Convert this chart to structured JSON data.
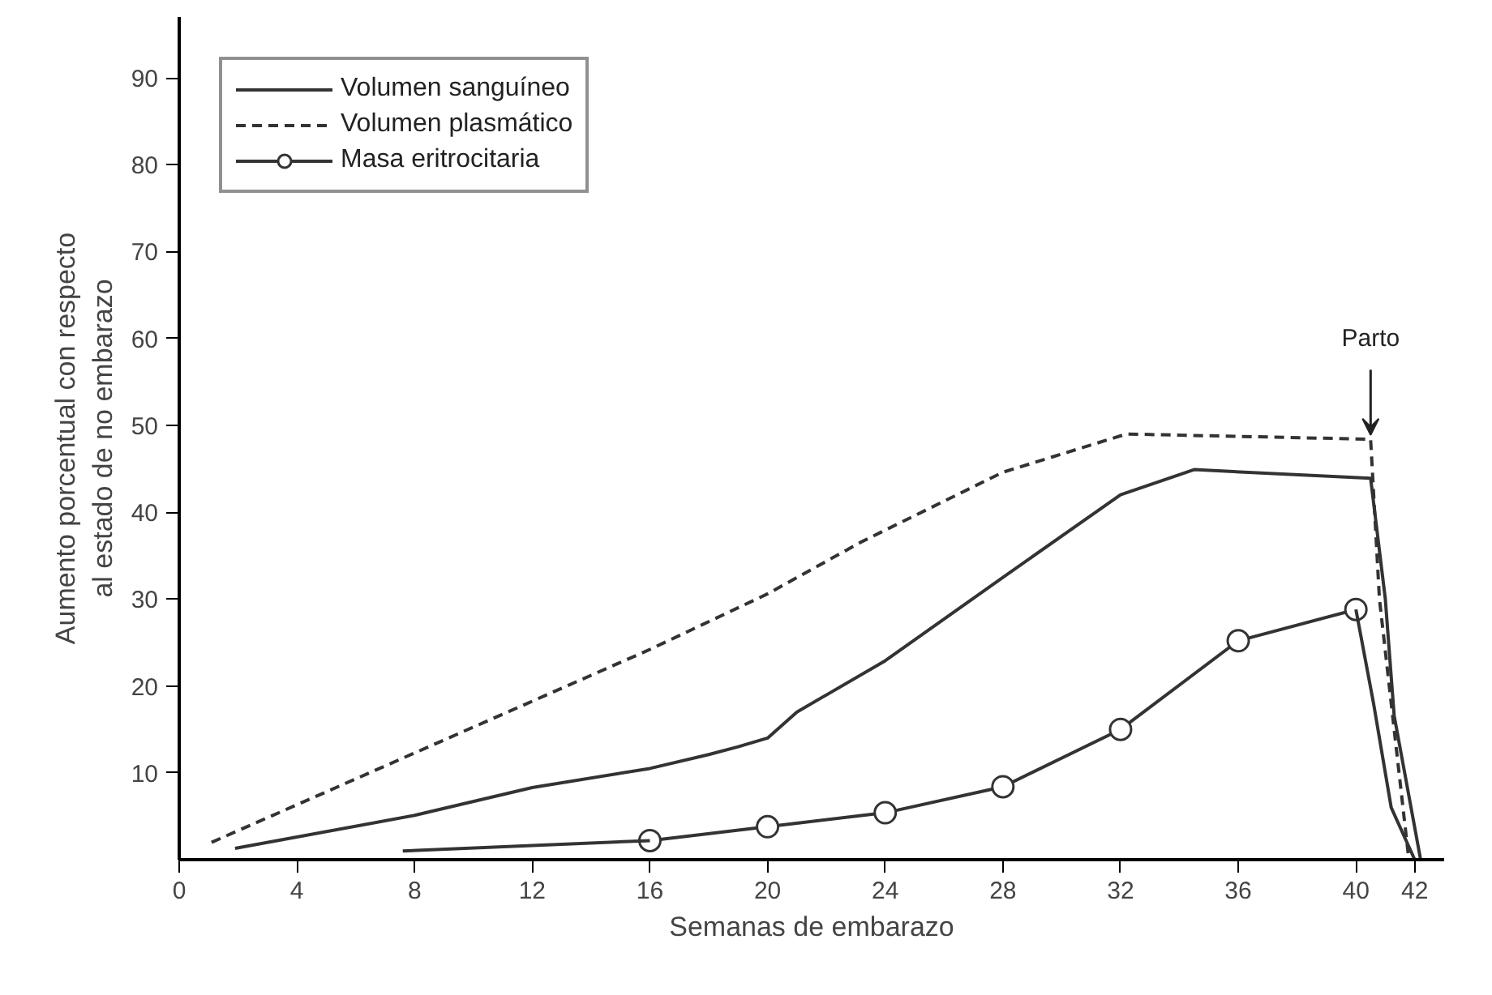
{
  "chart_data": {
    "type": "line",
    "xlabel": "Semanas de embarazo",
    "ylabel": "Aumento porcentual con respecto\nal estado de no embarazo",
    "xlim": [
      0,
      43
    ],
    "ylim": [
      0,
      97
    ],
    "xticks": [
      0,
      4,
      8,
      12,
      16,
      20,
      24,
      28,
      32,
      36,
      40,
      42
    ],
    "yticks": [
      10,
      20,
      30,
      40,
      50,
      60,
      70,
      80,
      90
    ],
    "grid": false,
    "legend": "top left",
    "series": [
      {
        "name": "Volumen sanguíneo",
        "color": "#333333",
        "line_style": "solid",
        "marker": "none",
        "x": [
          1.9,
          8,
          12,
          16,
          18,
          19,
          20,
          21,
          24,
          28,
          32,
          34.5,
          40.5,
          41,
          41.3,
          42.2
        ],
        "values": [
          1.3,
          5.1,
          8.3,
          10.5,
          12.1,
          13,
          14,
          17,
          22.9,
          32.5,
          42,
          44.9,
          43.9,
          30,
          16.6,
          0
        ]
      },
      {
        "name": "Volumen plasmático",
        "color": "#333333",
        "line_style": "dashed",
        "marker": "none",
        "x": [
          1.1,
          16,
          20,
          23.2,
          28,
          32.2,
          40.5,
          40.8,
          41.8
        ],
        "values": [
          2,
          24.2,
          30.6,
          36.6,
          44.6,
          49,
          48.4,
          30,
          0
        ]
      },
      {
        "name": "Masa eritrocitaria",
        "color": "#333333",
        "line_style": "solid",
        "marker": "circle",
        "x": [
          16,
          20,
          24,
          28,
          32,
          36,
          40
        ],
        "values": [
          2.2,
          3.8,
          5.4,
          8.4,
          15,
          25.2,
          28.8
        ]
      },
      {
        "color": "#333333",
        "line_style": "solid",
        "marker": "none",
        "x": [
          7.6,
          16
        ],
        "values": [
          1,
          2.2
        ]
      },
      {
        "color": "#333333",
        "line_style": "solid",
        "marker": "none",
        "x": [
          40,
          40.6,
          41.2,
          42
        ],
        "values": [
          28.8,
          18,
          6,
          0
        ]
      }
    ],
    "annotations": [
      {
        "text": "Parto",
        "x": 40.5,
        "y": 48.4
      }
    ]
  }
}
